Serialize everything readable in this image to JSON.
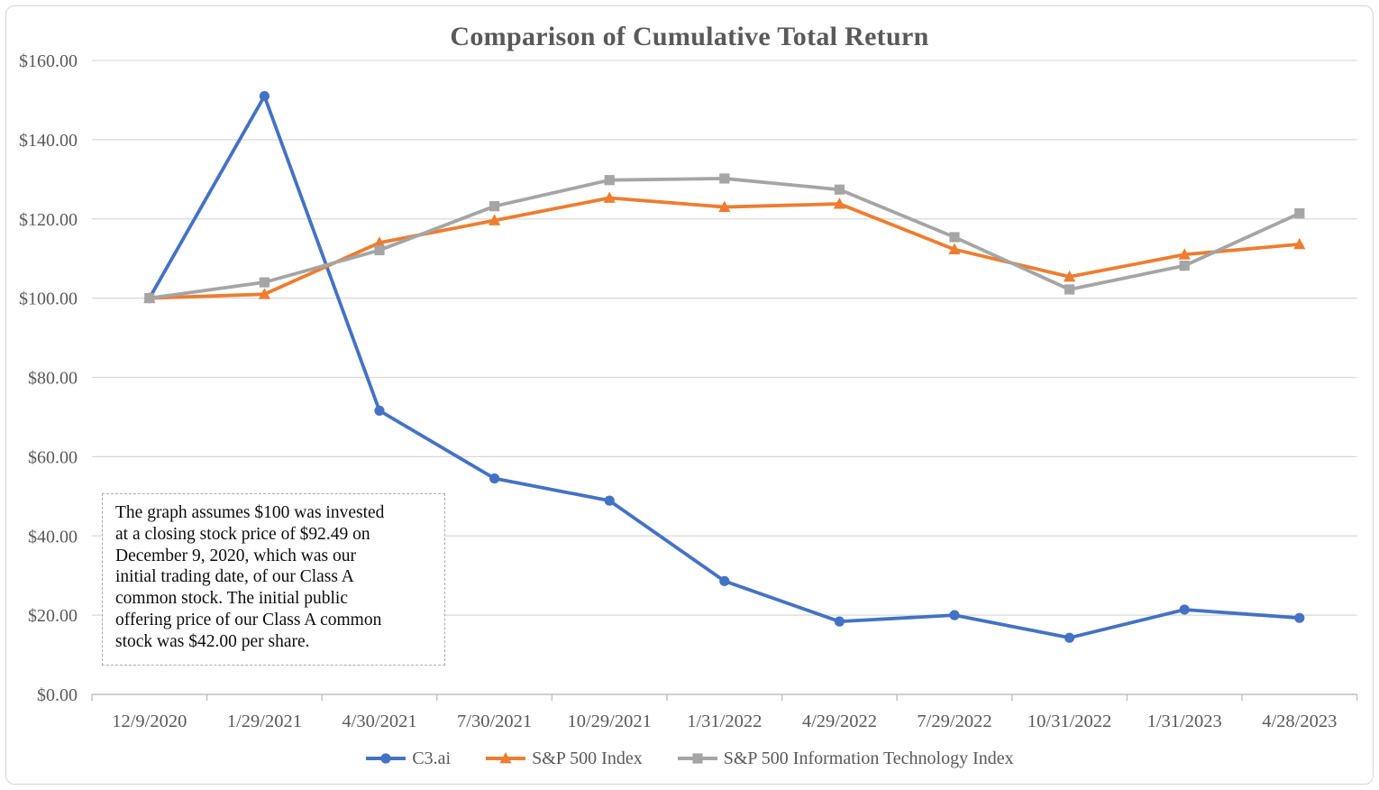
{
  "chart_data": {
    "type": "line",
    "title": "Comparison of Cumulative Total Return",
    "xlabel": "",
    "ylabel": "",
    "categories": [
      "12/9/2020",
      "1/29/2021",
      "4/30/2021",
      "7/30/2021",
      "10/29/2021",
      "1/31/2022",
      "4/29/2022",
      "7/29/2022",
      "10/31/2022",
      "1/31/2023",
      "4/28/2023"
    ],
    "series": [
      {
        "name": "C3.ai",
        "marker": "circle",
        "color": "#4472C4",
        "values": [
          100.0,
          151.0,
          71.6,
          54.5,
          48.9,
          28.6,
          18.4,
          20.0,
          14.3,
          21.4,
          19.3
        ]
      },
      {
        "name": "S&P 500 Index",
        "marker": "triangle",
        "color": "#ED7D31",
        "values": [
          100.0,
          101.0,
          114.0,
          119.6,
          125.3,
          123.0,
          123.8,
          112.3,
          105.4,
          111.0,
          113.6
        ]
      },
      {
        "name": "S&P 500 Information Technology Index",
        "marker": "square",
        "color": "#A5A5A5",
        "values": [
          100.0,
          104.0,
          112.1,
          123.2,
          129.8,
          130.2,
          127.4,
          115.4,
          102.2,
          108.2,
          121.4
        ]
      }
    ],
    "ylim": [
      0,
      160
    ],
    "ytick_step": 20,
    "ytick_labels": [
      "$0.00",
      "$20.00",
      "$40.00",
      "$60.00",
      "$80.00",
      "$100.00",
      "$120.00",
      "$140.00",
      "$160.00"
    ],
    "grid": true,
    "legend_position": "bottom",
    "colors": {
      "gridline": "#d9d9d9",
      "axis": "#bfbfbf",
      "tick_label": "#595959",
      "title": "#595959"
    }
  },
  "annotation": {
    "lines": [
      "The graph assumes $100 was invested",
      "at a closing stock price of $92.49 on",
      "December 9, 2020, which was our",
      "initial trading date, of our Class A",
      "common stock. The initial public",
      "offering price of our Class A common",
      "stock was $42.00 per share."
    ]
  }
}
